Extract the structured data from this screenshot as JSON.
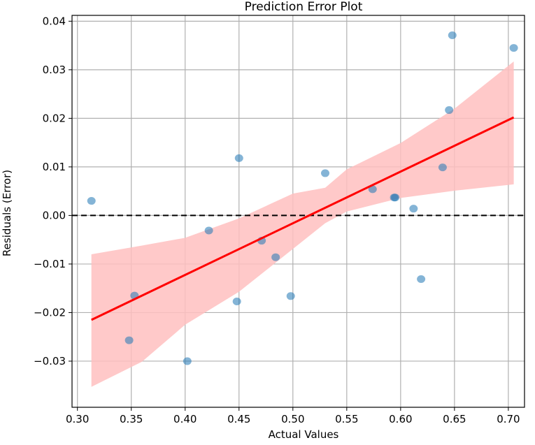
{
  "chart_data": {
    "type": "scatter",
    "title": "Prediction Error Plot",
    "xlabel": "Actual Values",
    "ylabel": "Residuals (Error)",
    "xlim": [
      0.295,
      0.715
    ],
    "ylim": [
      -0.0395,
      0.0412
    ],
    "x_ticks": [
      {
        "value": 0.3,
        "label": "0.30"
      },
      {
        "value": 0.35,
        "label": "0.35"
      },
      {
        "value": 0.4,
        "label": "0.40"
      },
      {
        "value": 0.45,
        "label": "0.45"
      },
      {
        "value": 0.5,
        "label": "0.50"
      },
      {
        "value": 0.55,
        "label": "0.55"
      },
      {
        "value": 0.6,
        "label": "0.60"
      },
      {
        "value": 0.65,
        "label": "0.65"
      },
      {
        "value": 0.7,
        "label": "0.70"
      }
    ],
    "y_ticks": [
      {
        "value": -0.03,
        "label": "−0.03"
      },
      {
        "value": -0.02,
        "label": "−0.02"
      },
      {
        "value": -0.01,
        "label": "−0.01"
      },
      {
        "value": 0.0,
        "label": "0.00"
      },
      {
        "value": 0.01,
        "label": "0.01"
      },
      {
        "value": 0.02,
        "label": "0.02"
      },
      {
        "value": 0.03,
        "label": "0.03"
      },
      {
        "value": 0.04,
        "label": "0.04"
      }
    ],
    "grid": true,
    "reference_line_y": 0.0,
    "points": [
      {
        "x": 0.313,
        "y": 0.003
      },
      {
        "x": 0.348,
        "y": -0.0257
      },
      {
        "x": 0.353,
        "y": -0.0165
      },
      {
        "x": 0.402,
        "y": -0.03
      },
      {
        "x": 0.422,
        "y": -0.0031
      },
      {
        "x": 0.448,
        "y": -0.0177
      },
      {
        "x": 0.45,
        "y": 0.0118
      },
      {
        "x": 0.471,
        "y": -0.0052
      },
      {
        "x": 0.484,
        "y": -0.0086
      },
      {
        "x": 0.498,
        "y": -0.0166
      },
      {
        "x": 0.53,
        "y": 0.0087
      },
      {
        "x": 0.574,
        "y": 0.0054
      },
      {
        "x": 0.594,
        "y": 0.0037
      },
      {
        "x": 0.595,
        "y": 0.0037
      },
      {
        "x": 0.612,
        "y": 0.0014
      },
      {
        "x": 0.619,
        "y": -0.0131
      },
      {
        "x": 0.639,
        "y": 0.0099
      },
      {
        "x": 0.645,
        "y": 0.0217
      },
      {
        "x": 0.648,
        "y": 0.0371
      },
      {
        "x": 0.705,
        "y": 0.0345
      }
    ],
    "regression_line": {
      "x": [
        0.313,
        0.705
      ],
      "y": [
        -0.0215,
        0.0202
      ]
    },
    "confidence_band": {
      "x": [
        0.313,
        0.36,
        0.4,
        0.45,
        0.5,
        0.53,
        0.55,
        0.6,
        0.65,
        0.705
      ],
      "upper": [
        -0.008,
        -0.0062,
        -0.0046,
        -0.0006,
        0.0045,
        0.0057,
        0.0095,
        0.0149,
        0.022,
        0.0317
      ],
      "lower": [
        -0.0353,
        -0.0301,
        -0.0225,
        -0.0157,
        -0.0069,
        -0.0016,
        0.0008,
        0.0036,
        0.0051,
        0.0064
      ]
    },
    "colors": {
      "points": "#1f77b4",
      "regression_line": "#ff0000",
      "confidence_band": "#ffc0c0",
      "reference_line": "#000000",
      "grid": "#b0b0b0"
    }
  }
}
